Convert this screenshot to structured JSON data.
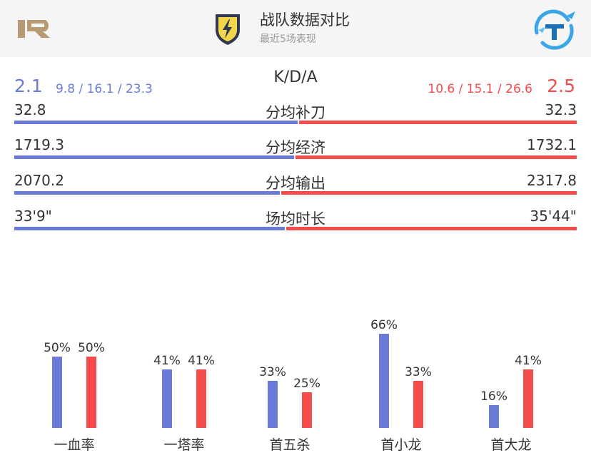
{
  "header": {
    "title": "战队数据对比",
    "subtitle": "最近5场表现",
    "left_team_logo": "rng-logo-icon",
    "right_team_logo": "team-t-logo-icon",
    "badge_icon": "lightning-shield-icon"
  },
  "colors": {
    "left": "#6a7ad7",
    "right": "#f44b4b"
  },
  "kda": {
    "label": "K/D/A",
    "left_ratio": "2.1",
    "left_detail": "9.8 / 16.1 / 23.3",
    "right_ratio": "2.5",
    "right_detail": "10.6 / 15.1 / 26.6"
  },
  "stats": [
    {
      "label": "分均补刀",
      "left": "32.8",
      "right": "32.3",
      "left_share": 0.504
    },
    {
      "label": "分均经济",
      "left": "1719.3",
      "right": "1732.1",
      "left_share": 0.498
    },
    {
      "label": "分均输出",
      "left": "2070.2",
      "right": "2317.8",
      "left_share": 0.472
    },
    {
      "label": "场均时长",
      "left": "33'9\"",
      "right": "35'44\"",
      "left_share": 0.481
    }
  ],
  "chart_data": {
    "type": "bar",
    "categories": [
      "一血率",
      "一塔率",
      "首五杀",
      "首小龙",
      "首大龙"
    ],
    "series": [
      {
        "values": [
          50,
          41,
          33,
          66,
          16
        ],
        "labels": [
          "50%",
          "41%",
          "33%",
          "66%",
          "16%"
        ]
      },
      {
        "values": [
          50,
          41,
          25,
          33,
          41
        ],
        "labels": [
          "50%",
          "41%",
          "25%",
          "33%",
          "41%"
        ]
      }
    ],
    "ylim": [
      0,
      100
    ]
  }
}
